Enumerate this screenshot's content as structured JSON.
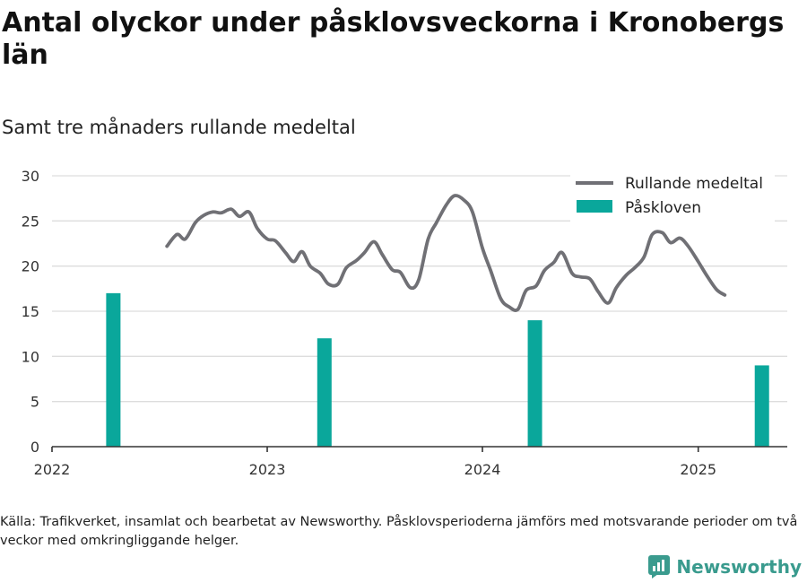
{
  "title": "Antal olyckor under påsklovsveckorna i Kronobergs län",
  "subtitle": "Samt tre månaders rullande medeltal",
  "source": "Källa: Trafikverket, insamlat och bearbetat av Newsworthy. Påsklovsperioderna jämförs med motsvarande perioder om två veckor med omkringliggande helger.",
  "brand": {
    "name": "Newsworthy",
    "icon": "newsworthy-logo-icon"
  },
  "colors": {
    "line": "#707075",
    "bar": "#0aa79b",
    "grid": "#dddddd",
    "axis": "#333333"
  },
  "chart_data": {
    "type": "bar+line",
    "xlim": [
      "2022-01-01",
      "2025-06-01"
    ],
    "ylim": [
      0,
      30
    ],
    "x_ticks": [
      "2022",
      "2023",
      "2024",
      "2025"
    ],
    "y_ticks": [
      0,
      5,
      10,
      15,
      20,
      25,
      30
    ],
    "grid": "horizontal",
    "legend_position": "top-right",
    "series": [
      {
        "name": "Rullande medeltal",
        "kind": "line",
        "points": [
          [
            "2022-07-15",
            22.2
          ],
          [
            "2022-08-01",
            23.5
          ],
          [
            "2022-08-15",
            23.0
          ],
          [
            "2022-09-01",
            24.8
          ],
          [
            "2022-09-15",
            25.6
          ],
          [
            "2022-10-01",
            26.0
          ],
          [
            "2022-10-15",
            25.9
          ],
          [
            "2022-11-01",
            26.3
          ],
          [
            "2022-11-15",
            25.5
          ],
          [
            "2022-12-01",
            26.0
          ],
          [
            "2022-12-15",
            24.2
          ],
          [
            "2023-01-01",
            23.0
          ],
          [
            "2023-01-15",
            22.8
          ],
          [
            "2023-02-01",
            21.5
          ],
          [
            "2023-02-15",
            20.5
          ],
          [
            "2023-03-01",
            21.6
          ],
          [
            "2023-03-15",
            20.0
          ],
          [
            "2023-04-01",
            19.2
          ],
          [
            "2023-04-15",
            18.0
          ],
          [
            "2023-05-01",
            18.0
          ],
          [
            "2023-05-15",
            19.8
          ],
          [
            "2023-06-01",
            20.6
          ],
          [
            "2023-06-15",
            21.5
          ],
          [
            "2023-07-01",
            22.7
          ],
          [
            "2023-07-15",
            21.3
          ],
          [
            "2023-08-01",
            19.6
          ],
          [
            "2023-08-15",
            19.3
          ],
          [
            "2023-09-01",
            17.6
          ],
          [
            "2023-09-15",
            18.5
          ],
          [
            "2023-10-01",
            23.0
          ],
          [
            "2023-10-15",
            24.8
          ],
          [
            "2023-11-01",
            26.8
          ],
          [
            "2023-11-15",
            27.8
          ],
          [
            "2023-12-01",
            27.3
          ],
          [
            "2023-12-15",
            26.0
          ],
          [
            "2024-01-01",
            22.0
          ],
          [
            "2024-01-15",
            19.5
          ],
          [
            "2024-02-01",
            16.4
          ],
          [
            "2024-02-15",
            15.5
          ],
          [
            "2024-03-01",
            15.2
          ],
          [
            "2024-03-15",
            17.3
          ],
          [
            "2024-04-01",
            17.8
          ],
          [
            "2024-04-15",
            19.5
          ],
          [
            "2024-05-01",
            20.4
          ],
          [
            "2024-05-15",
            21.5
          ],
          [
            "2024-06-01",
            19.2
          ],
          [
            "2024-06-15",
            18.8
          ],
          [
            "2024-07-01",
            18.6
          ],
          [
            "2024-07-15",
            17.2
          ],
          [
            "2024-08-01",
            15.9
          ],
          [
            "2024-08-15",
            17.6
          ],
          [
            "2024-09-01",
            19.0
          ],
          [
            "2024-09-15",
            19.8
          ],
          [
            "2024-10-01",
            21.0
          ],
          [
            "2024-10-15",
            23.5
          ],
          [
            "2024-11-01",
            23.7
          ],
          [
            "2024-11-15",
            22.6
          ],
          [
            "2024-12-01",
            23.1
          ],
          [
            "2024-12-15",
            22.2
          ],
          [
            "2025-01-01",
            20.5
          ],
          [
            "2025-01-15",
            19.0
          ],
          [
            "2025-02-01",
            17.4
          ],
          [
            "2025-02-15",
            16.8
          ]
        ]
      },
      {
        "name": "Påskloven",
        "kind": "bar",
        "points": [
          [
            "2022-04-15",
            17
          ],
          [
            "2023-04-08",
            12
          ],
          [
            "2024-03-30",
            14
          ],
          [
            "2025-04-19",
            9
          ]
        ]
      }
    ]
  }
}
